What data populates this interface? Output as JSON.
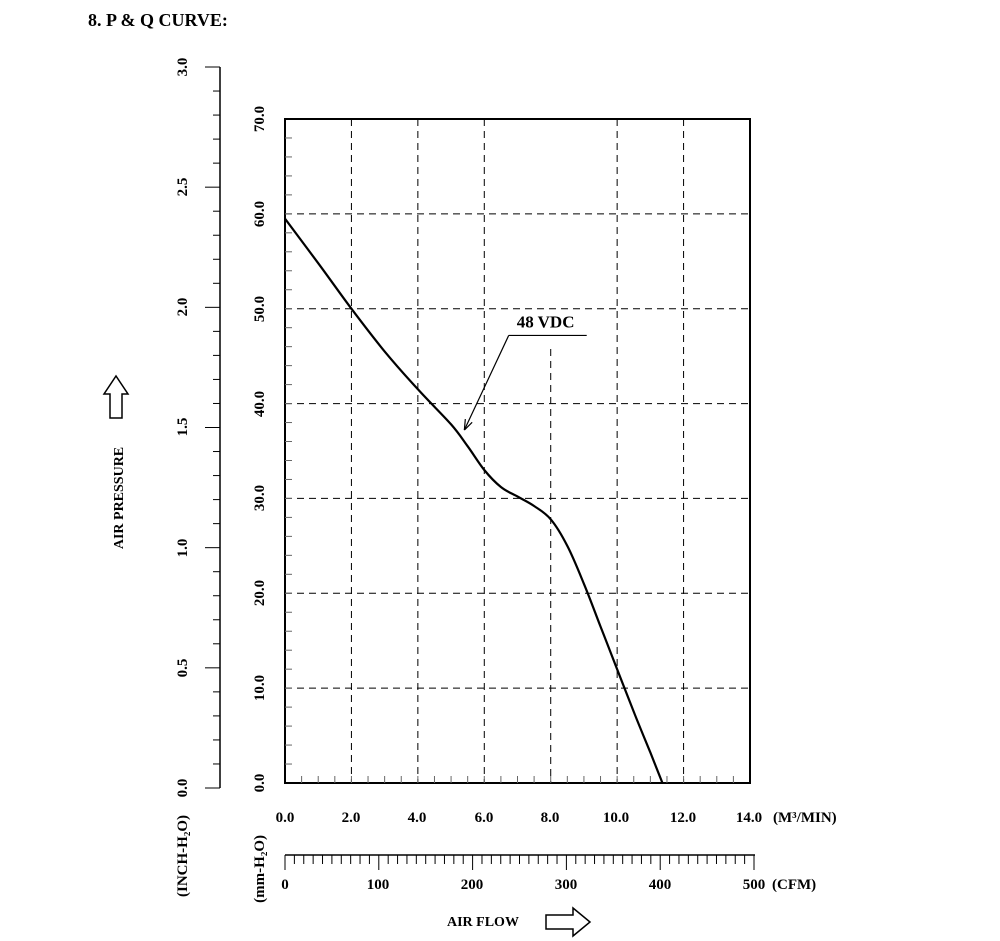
{
  "page_title": "8. P & Q CURVE:",
  "chart_data": {
    "type": "line",
    "title": "",
    "ylabel": "AIR PRESSURE",
    "xlabel": "AIR FLOW",
    "y_unit_mm": "(mm-H₂O)",
    "y_unit_inch": "(INCH-H₂O)",
    "x_unit_m3": "(M³/MIN)",
    "x_unit_cfm": "(CFM)",
    "xlim": [
      0,
      14
    ],
    "ylim": [
      0,
      70
    ],
    "grid": true,
    "x_ticks": [
      "0.0",
      "2.0",
      "4.0",
      "6.0",
      "8.0",
      "10.0",
      "12.0",
      "14.0"
    ],
    "y_ticks_mm": [
      "0.0",
      "10.0",
      "20.0",
      "30.0",
      "40.0",
      "50.0",
      "60.0",
      "70.0"
    ],
    "y_ticks_inch": [
      "0.0",
      "0.5",
      "1.0",
      "1.5",
      "2.0",
      "2.5",
      "3.0"
    ],
    "cfm_ticks": [
      "0",
      "100",
      "200",
      "300",
      "400",
      "500"
    ],
    "series": [
      {
        "name": "48 VDC",
        "x": [
          0.0,
          1.0,
          2.0,
          3.0,
          4.0,
          5.0,
          5.5,
          6.0,
          6.5,
          7.0,
          7.5,
          8.0,
          8.5,
          9.0,
          9.5,
          10.0,
          10.5,
          11.0,
          11.5,
          12.0
        ],
        "y": [
          59.5,
          54.8,
          50.0,
          45.5,
          41.5,
          37.8,
          35.5,
          33.0,
          31.2,
          30.2,
          29.2,
          27.8,
          25.0,
          21.0,
          16.5,
          12.0,
          7.5,
          3.2,
          -1.2,
          -5.5
        ]
      }
    ],
    "annotations": [
      {
        "text": "48 VDC",
        "x": 8.0,
        "y": 47.5
      }
    ]
  }
}
